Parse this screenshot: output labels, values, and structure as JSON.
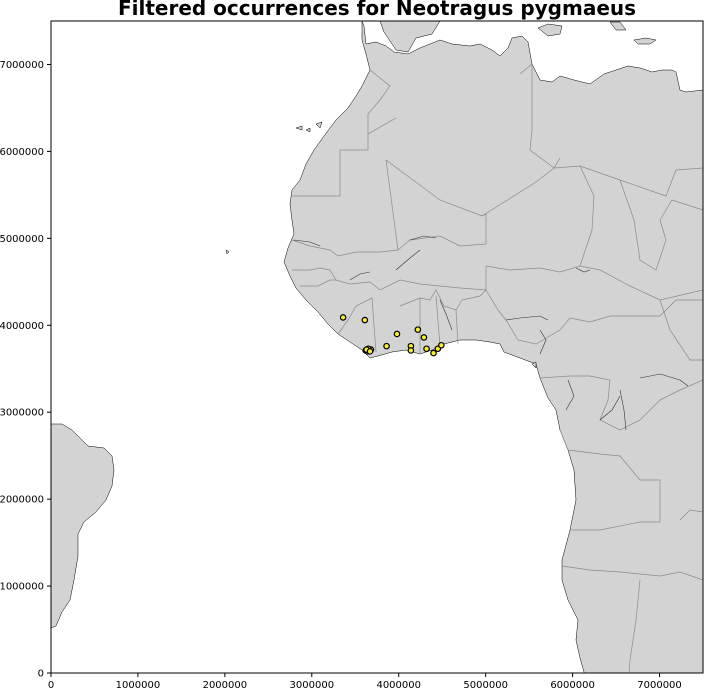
{
  "title": "Filtered occurrences for Neotragus pygmaeus",
  "chart_data": {
    "type": "scatter",
    "title": "Filtered occurrences for Neotragus pygmaeus",
    "xlim": [
      0,
      7500000
    ],
    "ylim": [
      0,
      7500000
    ],
    "x_ticks": [
      0,
      1000000,
      2000000,
      3000000,
      4000000,
      5000000,
      6000000,
      7000000
    ],
    "y_ticks": [
      0,
      1000000,
      2000000,
      3000000,
      4000000,
      5000000,
      6000000,
      7000000
    ],
    "x_tick_labels": [
      "0",
      "1000000",
      "2000000",
      "3000000",
      "4000000",
      "5000000",
      "6000000",
      "7000000"
    ],
    "y_tick_labels": [
      "0",
      "1000000",
      "2000000",
      "3000000",
      "4000000",
      "5000000",
      "6000000",
      "7000000"
    ],
    "marker_fill": "#f7ef2a",
    "marker_edge": "#000000",
    "land_color": "#d3d3d3",
    "border_color": "#8a8a8a",
    "points": [
      {
        "x": 3360000,
        "y": 4090000
      },
      {
        "x": 3610000,
        "y": 4060000
      },
      {
        "x": 3980000,
        "y": 3900000
      },
      {
        "x": 4220000,
        "y": 3950000
      },
      {
        "x": 4290000,
        "y": 3860000
      },
      {
        "x": 3860000,
        "y": 3760000
      },
      {
        "x": 4140000,
        "y": 3760000
      },
      {
        "x": 4140000,
        "y": 3710000
      },
      {
        "x": 4320000,
        "y": 3730000
      },
      {
        "x": 4400000,
        "y": 3680000
      },
      {
        "x": 4450000,
        "y": 3730000
      },
      {
        "x": 4490000,
        "y": 3770000
      },
      {
        "x": 3620000,
        "y": 3710000
      },
      {
        "x": 3640000,
        "y": 3700000
      },
      {
        "x": 3660000,
        "y": 3710000
      },
      {
        "x": 3680000,
        "y": 3720000
      },
      {
        "x": 3650000,
        "y": 3730000
      },
      {
        "x": 3630000,
        "y": 3720000
      },
      {
        "x": 3670000,
        "y": 3700000
      }
    ]
  }
}
